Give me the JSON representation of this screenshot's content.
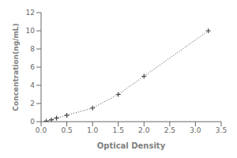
{
  "chart_data": {
    "type": "line",
    "xlabel": "Optical Density",
    "ylabel": "Concentration(ng/mL)",
    "x": [
      0.1,
      0.2,
      0.3,
      0.5,
      1.0,
      1.5,
      2.0,
      3.25
    ],
    "series": [
      {
        "values": [
          0.05,
          0.2,
          0.4,
          0.7,
          1.5,
          3.0,
          5.0,
          10.0
        ],
        "color": "#444444",
        "marker": "plus",
        "line_style": "dotted"
      }
    ],
    "xlim": [
      0,
      3.5
    ],
    "ylim": [
      0,
      12
    ],
    "xticks": [
      {
        "value": 0,
        "label": "0.0"
      },
      0.5,
      {
        "value": 1,
        "label": "1.0"
      },
      1.5,
      {
        "value": 2,
        "label": "2.0"
      },
      2.5,
      {
        "value": 3,
        "label": "3.0"
      },
      3.5
    ],
    "yticks": [
      0,
      2,
      4,
      6,
      8,
      10,
      12
    ],
    "grid": false
  }
}
